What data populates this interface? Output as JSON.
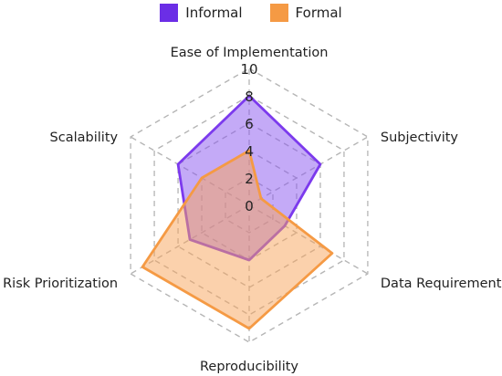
{
  "chart_data": {
    "type": "radar",
    "axes": [
      "Ease of Implementation",
      "Subjectivity",
      "Data Requirement",
      "Reproducibility",
      "Risk Prioritization",
      "Scalability"
    ],
    "ticks": [
      0,
      2,
      4,
      6,
      8,
      10
    ],
    "range": [
      0,
      10
    ],
    "grid": true,
    "legend_position": "top-center",
    "series": [
      {
        "name": "Informal",
        "values": [
          8,
          6,
          3,
          4,
          5,
          6
        ],
        "color": "#7c3aed",
        "fill": "#8a55f0"
      },
      {
        "name": "Formal",
        "values": [
          4,
          1,
          7,
          9,
          9,
          4
        ],
        "color": "#f59a44",
        "fill": "#f7a45a"
      }
    ]
  }
}
